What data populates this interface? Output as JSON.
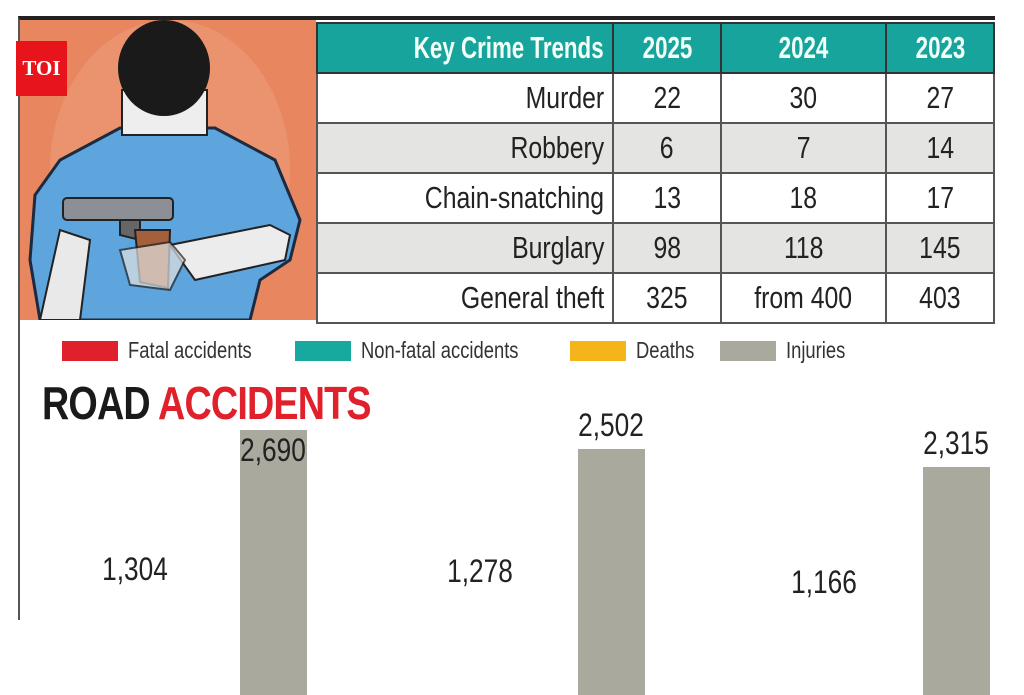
{
  "logo": "TOI",
  "table": {
    "header": [
      "Key Crime Trends",
      "2025",
      "2024",
      "2023"
    ],
    "rows": [
      [
        "Murder",
        "22",
        "30",
        "27"
      ],
      [
        "Robbery",
        "6",
        "7",
        "14"
      ],
      [
        "Chain-snatching",
        "13",
        "18",
        "17"
      ],
      [
        "Burglary",
        "98",
        "118",
        "145"
      ],
      [
        "General theft",
        "325",
        "from 400",
        "403"
      ]
    ]
  },
  "chart_data": {
    "type": "bar",
    "title_part1": "ROAD",
    "title_part2": "ACCIDENTS",
    "legend": [
      {
        "name": "Fatal accidents",
        "color": "#e0202a"
      },
      {
        "name": "Non-fatal accidents",
        "color": "#17a8a0"
      },
      {
        "name": "Deaths",
        "color": "#f5b51a"
      },
      {
        "name": "Injuries",
        "color": "#a9a99d"
      }
    ],
    "legend_position": "top",
    "groups": 3,
    "series": [
      {
        "name": "Injuries",
        "values": [
          2690,
          2502,
          2315
        ],
        "labels": [
          "2,690",
          "2,502",
          "2,315"
        ]
      },
      {
        "values": [
          1304,
          1278,
          1166
        ],
        "labels": [
          "1,304",
          "1,278",
          "1,166"
        ]
      }
    ],
    "grid": false
  }
}
